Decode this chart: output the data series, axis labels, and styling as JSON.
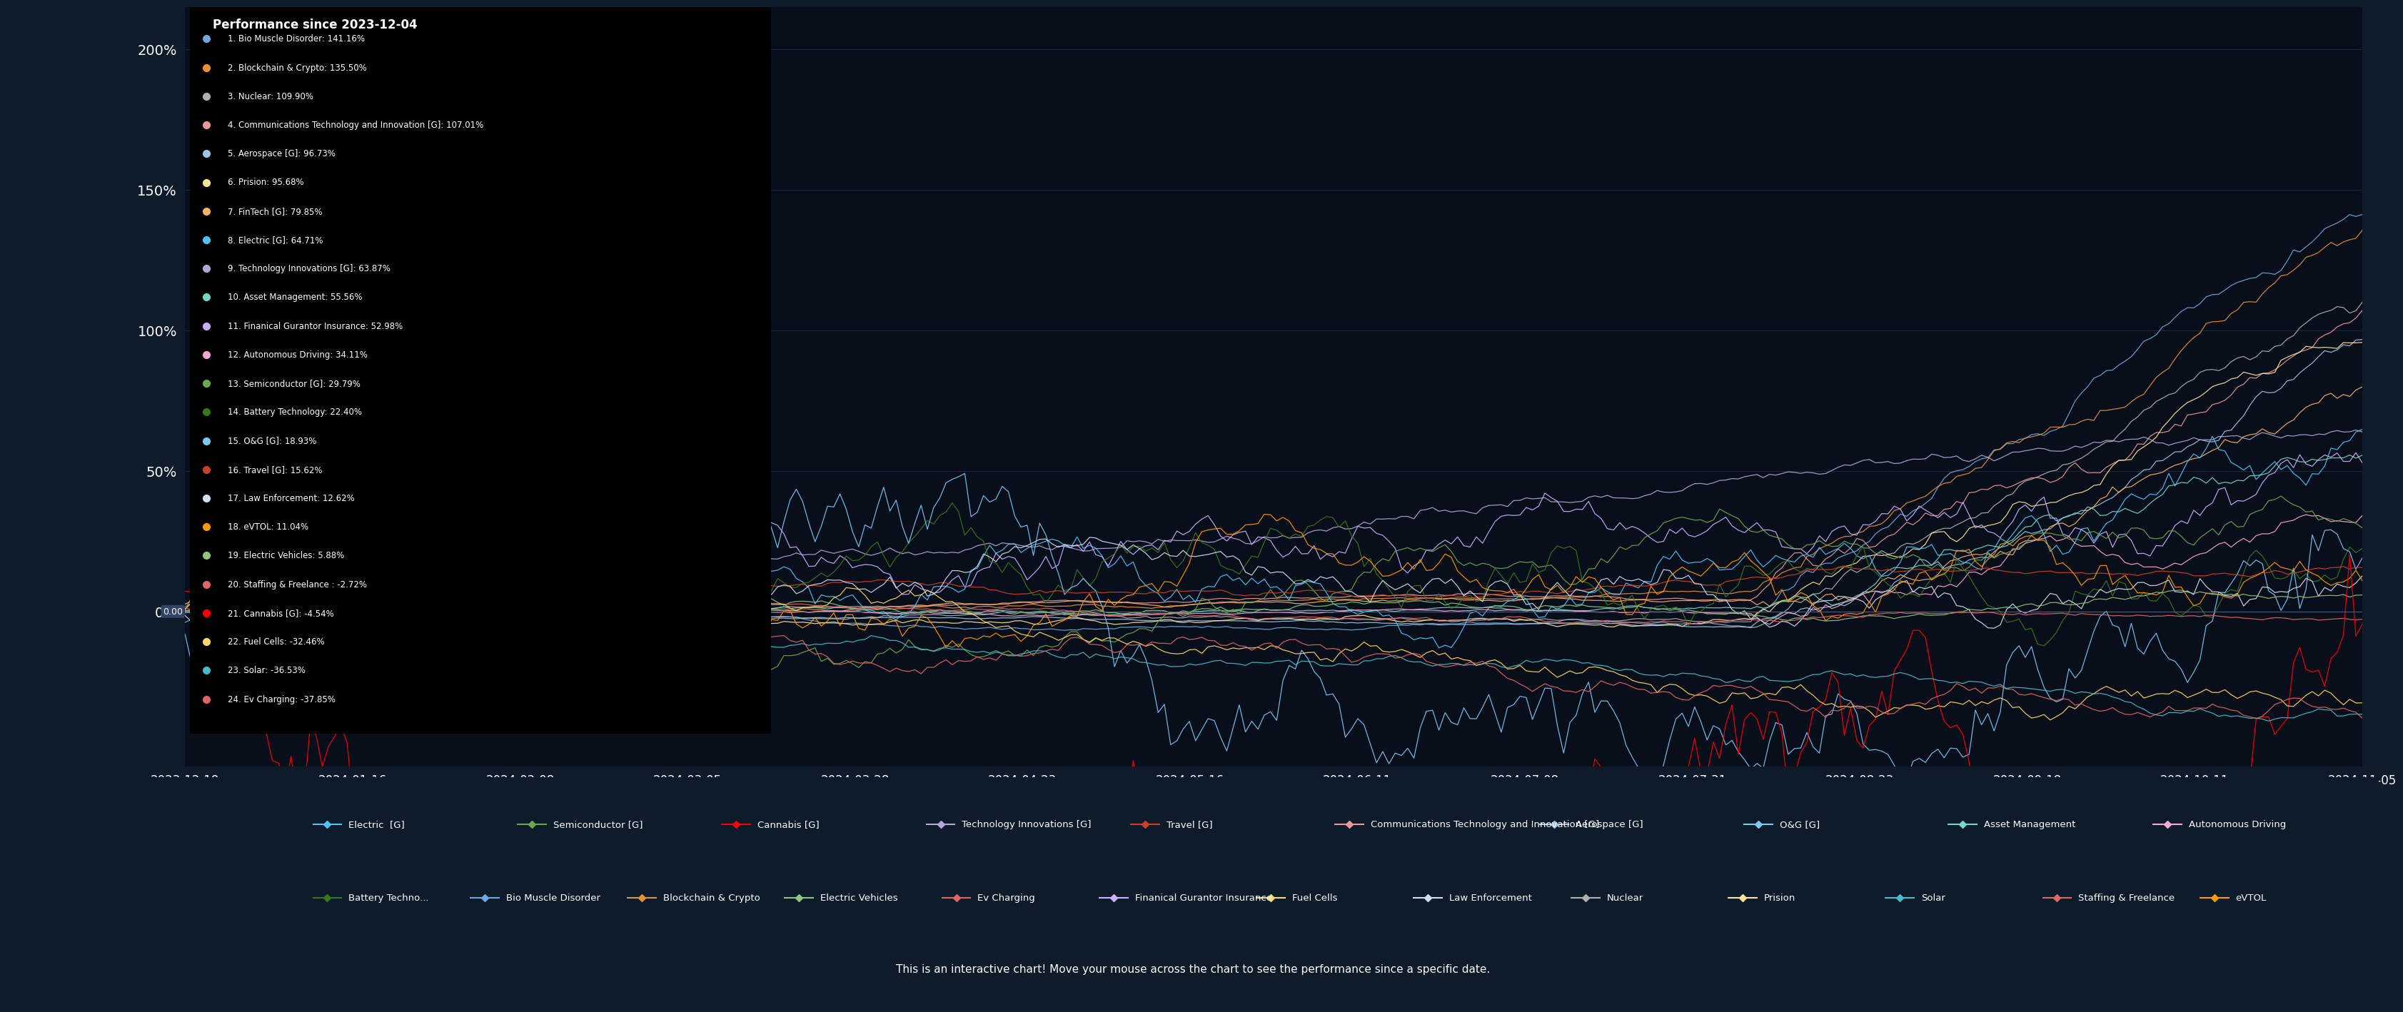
{
  "background_color": "#0d1b2a",
  "chart_background": "#080e1a",
  "title": "Performance since 2023-12-04",
  "subtitle": "This is an interactive chart! Move your mouse across the chart to see the performance since a specific date.",
  "yticks": [
    0,
    50,
    100,
    150,
    200
  ],
  "ylabels": [
    "0%",
    "50%",
    "100%",
    "150%",
    "200%"
  ],
  "ylim": [
    -55,
    215
  ],
  "x_dates": [
    "2023-12-19",
    "2024-01-16",
    "2024-02-08",
    "2024-03-05",
    "2024-03-28",
    "2024-04-23",
    "2024-05-16",
    "2024-06-11",
    "2024-07-08",
    "2024-07-31",
    "2024-08-23",
    "2024-09-18",
    "2024-10-11",
    "2024-11-05"
  ],
  "series": [
    {
      "name": "Bio Muscle Disorder",
      "final_pct": 141.16,
      "color": "#6fa8dc",
      "rank": 1
    },
    {
      "name": "Blockchain & Crypto",
      "final_pct": 135.5,
      "color": "#e69138",
      "rank": 2
    },
    {
      "name": "Nuclear",
      "final_pct": 109.9,
      "color": "#b0b0b0",
      "rank": 3
    },
    {
      "name": "Communications Technology and Innovation [G]",
      "final_pct": 107.01,
      "color": "#ea9999",
      "rank": 4
    },
    {
      "name": "Aerospace [G]",
      "final_pct": 96.73,
      "color": "#9fc5e8",
      "rank": 5
    },
    {
      "name": "Prision",
      "final_pct": 95.68,
      "color": "#ffe599",
      "rank": 6
    },
    {
      "name": "FinTech [G]",
      "final_pct": 79.85,
      "color": "#f6b26b",
      "rank": 7
    },
    {
      "name": "Electric [G]",
      "final_pct": 64.71,
      "color": "#4fc3f7",
      "rank": 8
    },
    {
      "name": "Technology Innovations [G]",
      "final_pct": 63.87,
      "color": "#b4a7d6",
      "rank": 9
    },
    {
      "name": "Asset Management",
      "final_pct": 55.56,
      "color": "#76d7c4",
      "rank": 10
    },
    {
      "name": "Finanical Gurantor Insurance",
      "final_pct": 52.98,
      "color": "#c9b1ff",
      "rank": 11
    },
    {
      "name": "Autonomous Driving",
      "final_pct": 34.11,
      "color": "#f9a8d4",
      "rank": 12
    },
    {
      "name": "Semiconductor [G]",
      "final_pct": 29.79,
      "color": "#6aa84f",
      "rank": 13
    },
    {
      "name": "Battery Technology",
      "final_pct": 22.4,
      "color": "#38761d",
      "rank": 14
    },
    {
      "name": "O&G [G]",
      "final_pct": 18.93,
      "color": "#7cc8f8",
      "rank": 15
    },
    {
      "name": "Travel [G]",
      "final_pct": 15.62,
      "color": "#cc4125",
      "rank": 16
    },
    {
      "name": "Law Enforcement",
      "final_pct": 12.62,
      "color": "#d0e0f0",
      "rank": 17
    },
    {
      "name": "eVTOL",
      "final_pct": 11.04,
      "color": "#ff9900",
      "rank": 18
    },
    {
      "name": "Electric Vehicles",
      "final_pct": 5.88,
      "color": "#93c47d",
      "rank": 19
    },
    {
      "name": "Staffing & Freelance ",
      "final_pct": -2.72,
      "color": "#e06666",
      "rank": 20
    },
    {
      "name": "Cannabis [G]",
      "final_pct": -4.54,
      "color": "#ff0000",
      "rank": 21
    },
    {
      "name": "Fuel Cells",
      "final_pct": -32.46,
      "color": "#ffd966",
      "rank": 22
    },
    {
      "name": "Solar",
      "final_pct": -36.53,
      "color": "#46bdc6",
      "rank": 23
    },
    {
      "name": "Ev Charging",
      "final_pct": -37.85,
      "color": "#e06666",
      "rank": 24
    }
  ],
  "legend_row1": [
    {
      "name": "Electric  [G]",
      "color": "#4fc3f7"
    },
    {
      "name": "Semiconductor [G]",
      "color": "#6aa84f"
    },
    {
      "name": "Cannabis [G]",
      "color": "#ff0000"
    },
    {
      "name": "Technology Innovations [G]",
      "color": "#b4a7d6"
    },
    {
      "name": "Travel [G]",
      "color": "#cc4125"
    },
    {
      "name": "Communications Technology and Innovation [G]",
      "color": "#ea9999"
    },
    {
      "name": "Aerospace [G]",
      "color": "#9fc5e8"
    },
    {
      "name": "O&G [G]",
      "color": "#7cc8f8"
    },
    {
      "name": "Asset Management",
      "color": "#76d7c4"
    },
    {
      "name": "Autonomous Driving",
      "color": "#f9a8d4"
    }
  ],
  "legend_row2": [
    {
      "name": "Battery Techno...",
      "color": "#38761d"
    },
    {
      "name": "Bio Muscle Disorder",
      "color": "#6fa8dc"
    },
    {
      "name": "Blockchain & Crypto",
      "color": "#e69138"
    },
    {
      "name": "Electric Vehicles",
      "color": "#93c47d"
    },
    {
      "name": "Ev Charging",
      "color": "#e06666"
    },
    {
      "name": "Finanical Gurantor Insurance",
      "color": "#c9b1ff"
    },
    {
      "name": "Fuel Cells",
      "color": "#ffd966"
    },
    {
      "name": "Law Enforcement",
      "color": "#d0e0f0"
    },
    {
      "name": "Nuclear",
      "color": "#b0b0b0"
    },
    {
      "name": "Prision",
      "color": "#ffe599"
    },
    {
      "name": "Solar",
      "color": "#46bdc6"
    },
    {
      "name": "Staffing & Freelance",
      "color": "#e06666"
    },
    {
      "name": "eVTOL",
      "color": "#ff9900"
    }
  ]
}
